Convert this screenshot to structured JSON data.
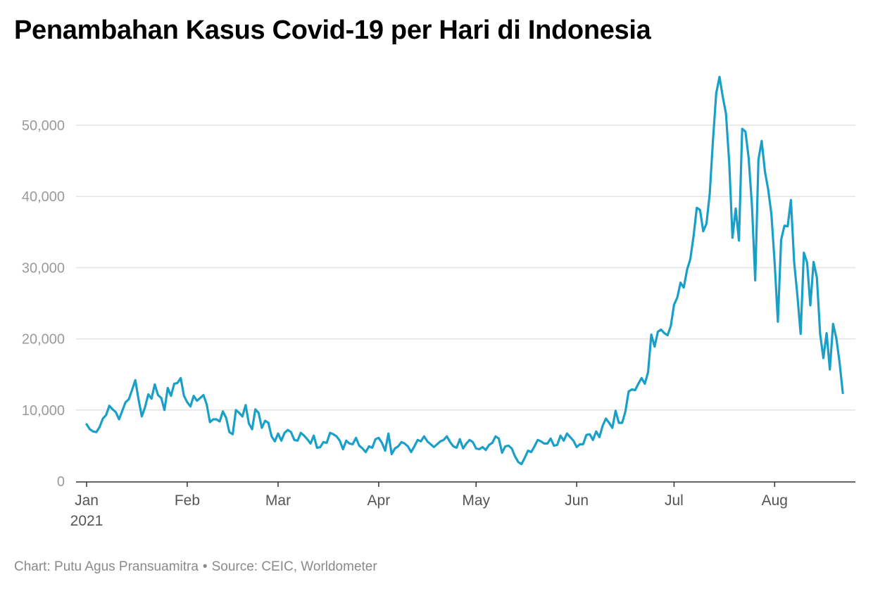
{
  "title": "Penambahan Kasus Covid-19 per Hari di Indonesia",
  "footer": {
    "chart_by": "Chart: Putu Agus Pransuamitra",
    "separator": "•",
    "source": "Source: CEIC, Worldometer"
  },
  "colors": {
    "line": "#1aa0c8",
    "grid": "#e3e3e3",
    "axis": "#333333"
  },
  "chart_data": {
    "type": "line",
    "title": "Penambahan Kasus Covid-19 per Hari di Indonesia",
    "xlabel": "",
    "ylabel": "",
    "ylim": [
      0,
      57000
    ],
    "yticks": [
      {
        "value": 0,
        "label": "0"
      },
      {
        "value": 10000,
        "label": "10,000"
      },
      {
        "value": 20000,
        "label": "20,000"
      },
      {
        "value": 30000,
        "label": "30,000"
      },
      {
        "value": 40000,
        "label": "40,000"
      },
      {
        "value": 50000,
        "label": "50,000"
      }
    ],
    "xticks": [
      {
        "day": 0,
        "label": "Jan",
        "sublabel": "2021"
      },
      {
        "day": 31,
        "label": "Feb",
        "sublabel": ""
      },
      {
        "day": 59,
        "label": "Mar",
        "sublabel": ""
      },
      {
        "day": 90,
        "label": "Apr",
        "sublabel": ""
      },
      {
        "day": 120,
        "label": "May",
        "sublabel": ""
      },
      {
        "day": 151,
        "label": "Jun",
        "sublabel": ""
      },
      {
        "day": 181,
        "label": "Jul",
        "sublabel": ""
      },
      {
        "day": 212,
        "label": "Aug",
        "sublabel": ""
      }
    ],
    "grid": true,
    "legend": "none",
    "series": [
      {
        "values": [
          8000,
          7300,
          7000,
          6900,
          7600,
          8800,
          9300,
          10600,
          10100,
          9700,
          8700,
          9900,
          11100,
          11500,
          12800,
          14200,
          11500,
          9100,
          10400,
          12200,
          11600,
          13600,
          12100,
          11700,
          10000,
          13100,
          12000,
          13700,
          13800,
          14500,
          12000,
          11100,
          10500,
          12000,
          11300,
          11700,
          12100,
          10800,
          8300,
          8700,
          8700,
          8400,
          9800,
          8900,
          6900,
          6600,
          10000,
          9600,
          9100,
          10700,
          8100,
          7300,
          10100,
          9600,
          7500,
          8500,
          8200,
          6300,
          5600,
          6700,
          5700,
          6800,
          7200,
          6900,
          5800,
          5700,
          6800,
          6400,
          5900,
          5300,
          6400,
          4700,
          4800,
          5500,
          5400,
          6800,
          6600,
          6300,
          5700,
          4500,
          5700,
          5300,
          5200,
          6100,
          5000,
          4600,
          4100,
          4900,
          4700,
          5900,
          6100,
          5400,
          4300,
          6700,
          3800,
          4600,
          4900,
          5500,
          5300,
          4900,
          4100,
          4900,
          5800,
          5600,
          6300,
          5600,
          5200,
          4800,
          5200,
          5600,
          5800,
          6300,
          5500,
          4900,
          4700,
          5900,
          4600,
          5300,
          5800,
          5500,
          4600,
          4500,
          4800,
          4400,
          5100,
          5400,
          6300,
          6000,
          4000,
          4900,
          5000,
          4600,
          3500,
          2700,
          2400,
          3300,
          4300,
          4100,
          4900,
          5800,
          5600,
          5300,
          5300,
          6000,
          5000,
          5100,
          6400,
          5700,
          6700,
          6200,
          5700,
          4800,
          5200,
          5200,
          6500,
          6600,
          5800,
          7000,
          6200,
          7800,
          8800,
          8200,
          7500,
          9900,
          8200,
          8200,
          9800,
          12600,
          12900,
          12800,
          13700,
          14500,
          13700,
          15300,
          20600,
          18900,
          21000,
          21300,
          20800,
          20500,
          21800,
          24800,
          25800,
          27900,
          27200,
          29700,
          31200,
          34400,
          38400,
          38100,
          35100,
          36200,
          40400,
          47900,
          54500,
          56800,
          54000,
          51600,
          44700,
          34200,
          38300,
          33800,
          49500,
          49100,
          45400,
          38700,
          28200,
          45200,
          47800,
          43500,
          41000,
          37500,
          30700,
          22400,
          33900,
          35900,
          35800,
          39500,
          30800,
          26100,
          20700,
          32100,
          30700,
          24700,
          30800,
          28600,
          20700,
          17300,
          20800,
          15700,
          22100,
          20100,
          16700,
          12400
        ]
      }
    ]
  }
}
